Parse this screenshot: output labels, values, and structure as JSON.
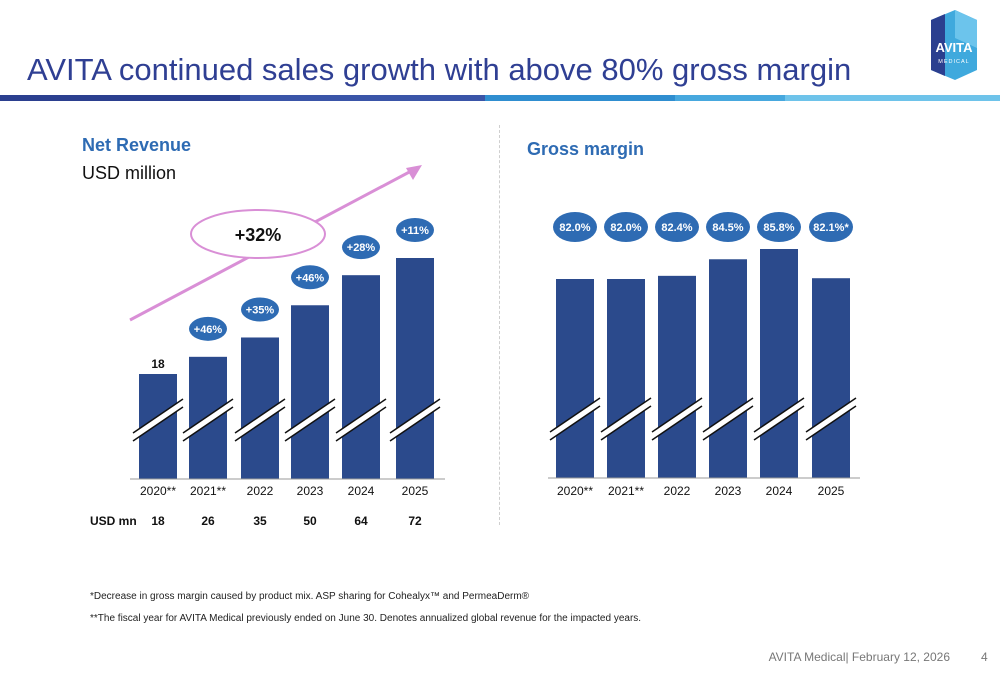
{
  "slide": {
    "title": "AVITA continued sales growth with above 80% gross margin",
    "footnote1": "*Decrease in gross margin caused by product mix. ASP sharing for Cohealyx™ and PermeaDerm®",
    "footnote2": "**The fiscal year for AVITA Medical previously ended on June 30. Denotes annualized global revenue for the impacted years.",
    "footer": "AVITA Medical| February 12, 2026",
    "page": "4"
  },
  "logo": {
    "name": "AVITA",
    "sub": "MEDICAL"
  },
  "colors": {
    "bar": "#2b4a8c",
    "accent": "#2e6bb3",
    "arrow": "#d98fd6",
    "title": "#2f3f93"
  },
  "chart_data": [
    {
      "type": "bar",
      "title": "Net Revenue",
      "subtitle": "USD million",
      "categories": [
        "2020**",
        "2021**",
        "2022",
        "2023",
        "2024",
        "2025"
      ],
      "values": [
        18,
        26,
        35,
        50,
        64,
        72
      ],
      "growth_labels": [
        "",
        "+46%",
        "+35%",
        "+46%",
        "+28%",
        "+11%"
      ],
      "top_label": "18",
      "cagr_label": "+32%",
      "row_label": "USD mn",
      "row_values": [
        "18",
        "26",
        "35",
        "50",
        "64",
        "72"
      ],
      "axis_break": true
    },
    {
      "type": "bar",
      "title": "Gross margin",
      "categories": [
        "2020**",
        "2021**",
        "2022",
        "2023",
        "2024",
        "2025"
      ],
      "values": [
        82.0,
        82.0,
        82.4,
        84.5,
        85.8,
        82.1
      ],
      "value_labels": [
        "82.0%",
        "82.0%",
        "82.4%",
        "84.5%",
        "85.8%",
        "82.1%*"
      ],
      "axis_break": true
    }
  ]
}
